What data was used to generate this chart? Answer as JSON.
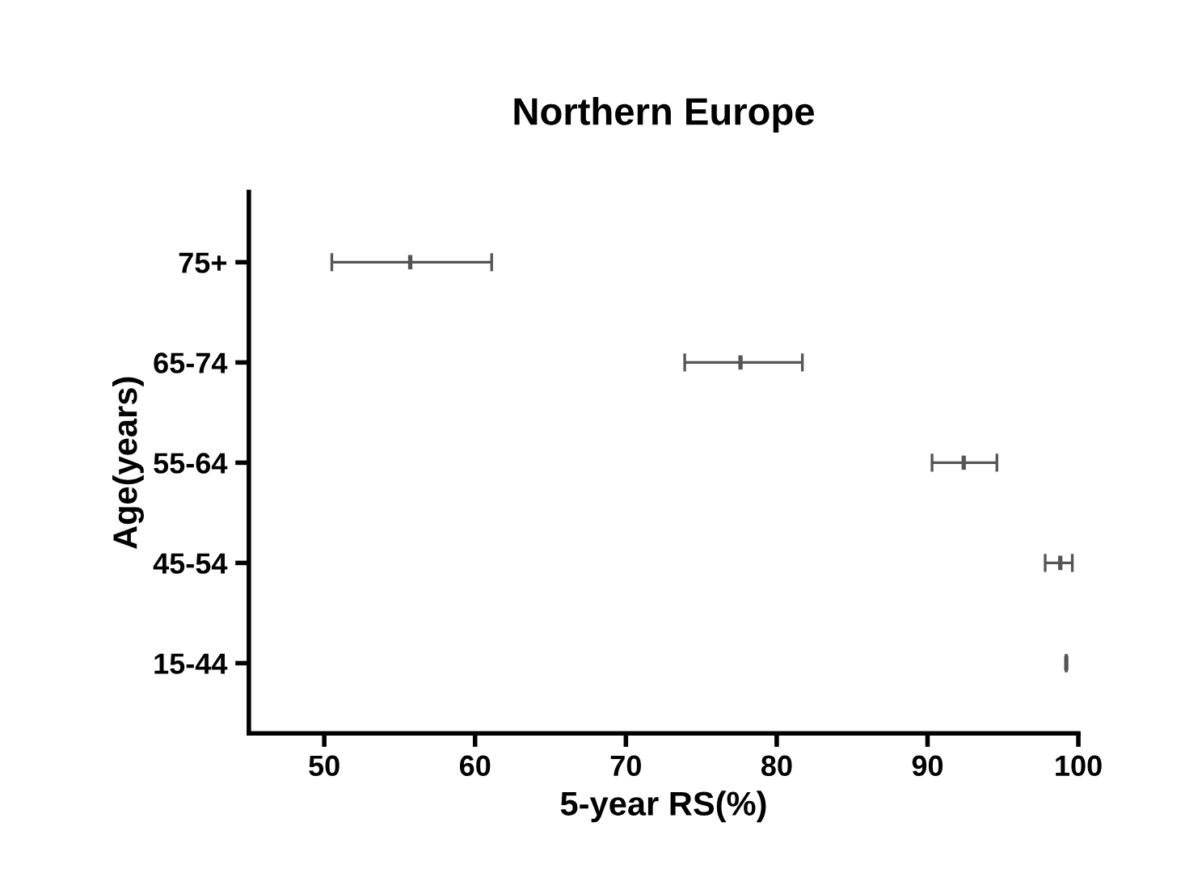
{
  "chart_data": {
    "type": "scatter",
    "orientation": "horizontal",
    "title": "Northern Europe",
    "xlabel": "5-year RS(%)",
    "ylabel": "Age(years)",
    "categories": [
      "75+",
      "65-74",
      "55-64",
      "45-54",
      "15-44"
    ],
    "values": [
      55.7,
      77.6,
      92.4,
      98.8,
      99.2
    ],
    "errors": [
      [
        50.5,
        61.1
      ],
      [
        73.9,
        81.7
      ],
      [
        90.3,
        94.6
      ],
      [
        97.8,
        99.6
      ],
      null
    ],
    "color": "#555555",
    "xlim": [
      45,
      100
    ],
    "xticks": [
      50,
      60,
      70,
      80,
      90,
      100
    ],
    "grid": false,
    "legend": false
  }
}
